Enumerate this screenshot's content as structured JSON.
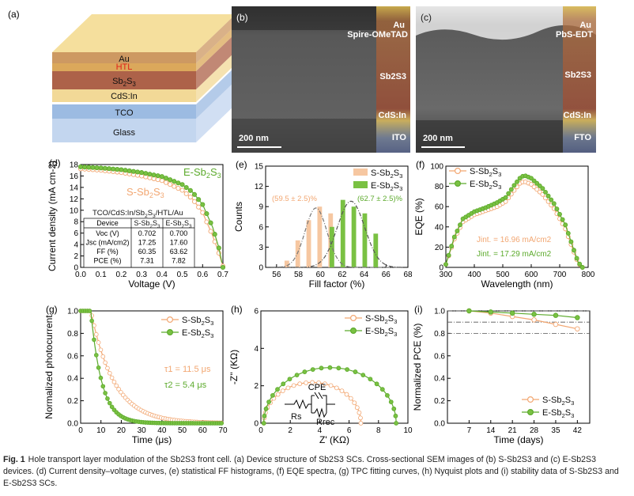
{
  "caption": {
    "label": "Fig. 1",
    "text": "Hole transport layer modulation of the Sb2S3 front cell. (a) Device structure of Sb2S3 SCs. Cross-sectional SEM images of (b) S-Sb2S3 and (c) E-Sb2S3 devices. (d) Current density–voltage curves, (e) statistical FF histograms, (f) EQE spectra, (g) TPC fitting curves, (h) Nyquist plots and (i) stability data of S-Sb2S3 and E-Sb2S3 SCs."
  },
  "colors": {
    "s": "#f2a772",
    "s_fill": "#f6c7a1",
    "e": "#5caa2c",
    "e_fill": "#7ac143",
    "red": "#e0201a"
  },
  "panel_a": {
    "label": "(a)",
    "layers": [
      {
        "name": "Au",
        "color": "#c99055"
      },
      {
        "name": "HTL",
        "color": "#d8a14d"
      },
      {
        "name": "Sb2S3",
        "color": "#a6553a"
      },
      {
        "name": "CdS:In",
        "color": "#f1d68e"
      },
      {
        "name": "TCO",
        "color": "#94b5e0"
      },
      {
        "name": "Glass",
        "color": "#bed2ee"
      }
    ]
  },
  "panel_b": {
    "label": "(b)",
    "layers": [
      "Au",
      "Spire-OMeTAD",
      "Sb2S3",
      "CdS:In",
      "ITO"
    ],
    "scale": "200 nm"
  },
  "panel_c": {
    "label": "(c)",
    "layers": [
      "Au",
      "PbS-EDT",
      "Sb2S3",
      "CdS:In",
      "FTO"
    ],
    "scale": "200 nm"
  },
  "panel_d": {
    "label": "(d)",
    "xlabel": "Voltage (V)",
    "ylabel": "Current density (mA cm-2)",
    "xlim": [
      0,
      0.7
    ],
    "ylim": [
      0,
      18
    ],
    "xticks": [
      "0.0",
      "0.1",
      "0.2",
      "0.3",
      "0.4",
      "0.5",
      "0.6",
      "0.7"
    ],
    "yticks": [
      "0",
      "2",
      "4",
      "6",
      "8",
      "10",
      "12",
      "14",
      "16",
      "18"
    ],
    "series_e_label": "E-Sb2S3",
    "series_s_label": "S-Sb2S3",
    "table_title": "TCO/CdS:In/Sb2S3/HTL/Au",
    "table": {
      "headers": [
        "Device",
        "S-Sb2S3",
        "E-Sb2S3"
      ],
      "rows": [
        [
          "Voc (V)",
          "0.702",
          "0.700"
        ],
        [
          "Jsc (mA/cm2)",
          "17.25",
          "17.60"
        ],
        [
          "FF (%)",
          "60.35",
          "63.62"
        ],
        [
          "PCE (%)",
          "7.31",
          "7.82"
        ]
      ]
    }
  },
  "panel_e": {
    "label": "(e)",
    "xlabel": "Fill factor (%)",
    "ylabel": "Counts",
    "xlim": [
      55,
      68
    ],
    "ylim": [
      0,
      15
    ],
    "xticks": [
      "56",
      "58",
      "60",
      "62",
      "64",
      "66",
      "68"
    ],
    "yticks": [
      "0",
      "3",
      "6",
      "9",
      "12",
      "15"
    ],
    "legend": [
      "S-Sb2S3",
      "E-Sb2S3"
    ],
    "s_annot": "(59.5 ± 2.5)%",
    "e_annot": "(62.7 ± 2.5)%"
  },
  "panel_f": {
    "label": "(f)",
    "xlabel": "Wavelength (nm)",
    "ylabel": "EQE (%)",
    "xlim": [
      300,
      800
    ],
    "ylim": [
      0,
      100
    ],
    "xticks": [
      "300",
      "400",
      "500",
      "600",
      "700",
      "800"
    ],
    "yticks": [
      "0",
      "20",
      "40",
      "60",
      "80",
      "100"
    ],
    "legend": [
      "S-Sb2S3",
      "E-Sb2S3"
    ],
    "jint_s": "Jint. = 16.96 mA/cm2",
    "jint_e": "Jint. = 17.29 mA/cm2"
  },
  "panel_g": {
    "label": "(g)",
    "xlabel": "Time (μs)",
    "ylabel": "Normalized photocurrent",
    "xlim": [
      0,
      70
    ],
    "ylim": [
      0,
      1.0
    ],
    "xticks": [
      "0",
      "10",
      "20",
      "30",
      "40",
      "50",
      "60",
      "70"
    ],
    "yticks": [
      "0.0",
      "0.2",
      "0.4",
      "0.6",
      "0.8",
      "1.0"
    ],
    "legend": [
      "S-Sb2S3",
      "E-Sb2S3"
    ],
    "tau1": "τ1 = 11.5 μs",
    "tau2": "τ2 = 5.4 μs"
  },
  "panel_h": {
    "label": "(h)",
    "xlabel": "Z' (KΩ)",
    "ylabel": "-Z'' (KΩ)",
    "xlim": [
      0,
      10
    ],
    "ylim": [
      0,
      6
    ],
    "xticks": [
      "0",
      "2",
      "4",
      "6",
      "8",
      "10"
    ],
    "yticks": [
      "0",
      "2",
      "4",
      "6"
    ],
    "legend": [
      "S-Sb2S3",
      "E-Sb2S3"
    ],
    "circuit": {
      "cpe": "CPE",
      "rs": "Rs",
      "rrec": "Rrec"
    }
  },
  "panel_i": {
    "label": "(i)",
    "xlabel": "Time (days)",
    "ylabel": "Normalized PCE (%)",
    "xlim": [
      0,
      46
    ],
    "ylim": [
      0,
      1.0
    ],
    "xticks": [
      "7",
      "14",
      "21",
      "28",
      "35",
      "42"
    ],
    "yticks": [
      "0.0",
      "0.2",
      "0.4",
      "0.6",
      "0.8",
      "1.0"
    ],
    "legend": [
      "S-Sb2S3",
      "E-Sb2S3"
    ]
  },
  "chart_data": [
    {
      "type": "line",
      "panel": "d",
      "xlabel": "Voltage (V)",
      "ylabel": "Current density (mA cm-2)",
      "series": [
        {
          "name": "S-Sb2S3",
          "x": [
            0,
            0.1,
            0.2,
            0.3,
            0.4,
            0.5,
            0.55,
            0.6,
            0.65,
            0.68,
            0.702
          ],
          "y": [
            17.25,
            17.0,
            16.6,
            16.0,
            15.2,
            13.5,
            12.0,
            9.6,
            5.5,
            2.5,
            0
          ]
        },
        {
          "name": "E-Sb2S3",
          "x": [
            0,
            0.1,
            0.2,
            0.3,
            0.4,
            0.5,
            0.55,
            0.6,
            0.65,
            0.68,
            0.7
          ],
          "y": [
            17.6,
            17.4,
            17.1,
            16.6,
            15.9,
            14.5,
            13.2,
            11.0,
            7.0,
            3.4,
            0
          ]
        }
      ]
    },
    {
      "type": "bar",
      "panel": "e",
      "series": [
        {
          "name": "S-Sb2S3",
          "x": [
            57,
            58,
            59,
            60,
            61
          ],
          "values": [
            1,
            4,
            7,
            9,
            8
          ]
        },
        {
          "name": "E-Sb2S3",
          "x": [
            61,
            62,
            63,
            64,
            65
          ],
          "values": [
            6,
            10,
            9,
            8,
            5
          ]
        }
      ],
      "annotations": [
        "(59.5 ± 2.5)%",
        "(62.7 ± 2.5)%"
      ]
    },
    {
      "type": "line",
      "panel": "f",
      "series": [
        {
          "name": "S-Sb2S3",
          "x": [
            300,
            330,
            360,
            400,
            440,
            480,
            510,
            540,
            560,
            575,
            600,
            640,
            680,
            720,
            750,
            765,
            780
          ],
          "y": [
            3,
            28,
            45,
            52,
            56,
            60,
            65,
            76,
            83,
            85,
            82,
            72,
            58,
            38,
            15,
            4,
            0
          ]
        },
        {
          "name": "E-Sb2S3",
          "x": [
            300,
            330,
            360,
            400,
            440,
            480,
            510,
            540,
            560,
            575,
            600,
            640,
            680,
            720,
            750,
            765,
            780
          ],
          "y": [
            3,
            30,
            48,
            55,
            59,
            64,
            69,
            81,
            88,
            91,
            88,
            78,
            63,
            42,
            17,
            5,
            0
          ]
        }
      ]
    },
    {
      "type": "line",
      "panel": "g",
      "series": [
        {
          "name": "S-Sb2S3",
          "tau": 11.5
        },
        {
          "name": "E-Sb2S3",
          "tau": 5.4
        }
      ]
    },
    {
      "type": "scatter",
      "panel": "h",
      "series": [
        {
          "name": "S-Sb2S3",
          "rs": 0.2,
          "rrec": 6.6
        },
        {
          "name": "E-Sb2S3",
          "rs": 0.2,
          "rrec": 9.0
        }
      ]
    },
    {
      "type": "line",
      "panel": "i",
      "series": [
        {
          "name": "S-Sb2S3",
          "x": [
            7,
            14,
            21,
            28,
            35,
            42
          ],
          "y": [
            1.0,
            0.98,
            0.95,
            0.92,
            0.88,
            0.84
          ]
        },
        {
          "name": "E-Sb2S3",
          "x": [
            7,
            14,
            21,
            28,
            35,
            42
          ],
          "y": [
            1.0,
            0.99,
            0.98,
            0.97,
            0.96,
            0.94
          ]
        }
      ]
    }
  ]
}
